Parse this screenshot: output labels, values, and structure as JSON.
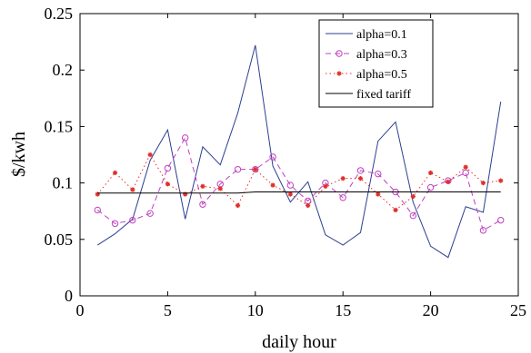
{
  "chart_data": {
    "type": "line",
    "xlabel": "daily hour",
    "ylabel": "$/kwh",
    "xlim": [
      0,
      25
    ],
    "ylim": [
      0,
      0.25
    ],
    "x_ticks": [
      0,
      5,
      10,
      15,
      20,
      25
    ],
    "y_ticks": [
      0,
      0.05,
      0.1,
      0.15,
      0.2,
      0.25
    ],
    "x_tick_labels": [
      "0",
      "5",
      "10",
      "15",
      "20",
      "25"
    ],
    "y_tick_labels": [
      "0",
      "0.05",
      "0.1",
      "0.15",
      "0.2",
      "0.25"
    ],
    "grid": false,
    "legend_position": "top-right",
    "x": [
      1,
      2,
      3,
      4,
      5,
      6,
      7,
      8,
      9,
      10,
      11,
      12,
      13,
      14,
      15,
      16,
      17,
      18,
      19,
      20,
      21,
      22,
      23,
      24
    ],
    "series": [
      {
        "name": "alpha=0.1",
        "color": "#2b3f8f",
        "style": "solid",
        "marker": "none",
        "values": [
          0.045,
          0.055,
          0.068,
          0.12,
          0.147,
          0.068,
          0.132,
          0.116,
          0.162,
          0.222,
          0.115,
          0.083,
          0.101,
          0.054,
          0.045,
          0.056,
          0.137,
          0.154,
          0.083,
          0.044,
          0.034,
          0.079,
          0.074,
          0.172
        ]
      },
      {
        "name": "alpha=0.3",
        "color": "#c040c0",
        "style": "dashed",
        "marker": "circle",
        "values": [
          0.076,
          0.064,
          0.067,
          0.073,
          0.113,
          0.14,
          0.081,
          0.099,
          0.112,
          0.112,
          0.123,
          0.098,
          0.084,
          0.1,
          0.087,
          0.111,
          0.108,
          0.092,
          0.071,
          0.096,
          0.102,
          0.109,
          0.058,
          0.067
        ]
      },
      {
        "name": "alpha=0.5",
        "color": "#e0302a",
        "style": "dotted",
        "marker": "star",
        "values": [
          0.09,
          0.109,
          0.094,
          0.125,
          0.099,
          0.09,
          0.097,
          0.095,
          0.08,
          0.112,
          0.098,
          0.09,
          0.08,
          0.097,
          0.104,
          0.104,
          0.09,
          0.076,
          0.088,
          0.109,
          0.101,
          0.114,
          0.1,
          0.102
        ]
      },
      {
        "name": "fixed tariff",
        "color": "#000000",
        "style": "solid",
        "marker": "none",
        "values": [
          0.091,
          0.091,
          0.091,
          0.091,
          0.091,
          0.091,
          0.091,
          0.091,
          0.091,
          0.092,
          0.092,
          0.092,
          0.092,
          0.092,
          0.092,
          0.092,
          0.092,
          0.092,
          0.092,
          0.092,
          0.092,
          0.092,
          0.092,
          0.092
        ]
      }
    ]
  }
}
